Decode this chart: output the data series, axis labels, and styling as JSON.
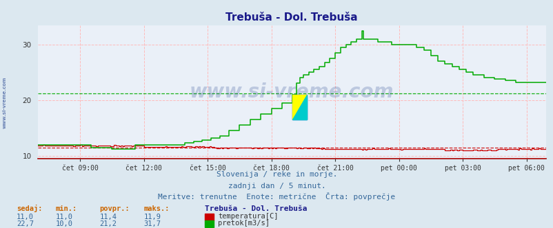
{
  "title": "Trebuša - Dol. Trebuša",
  "bg_color": "#dce8f0",
  "plot_bg": "#eaf0f8",
  "x_labels": [
    "čet 09:00",
    "čet 12:00",
    "čet 15:00",
    "čet 18:00",
    "čet 21:00",
    "pet 00:00",
    "pet 03:00",
    "pet 06:00"
  ],
  "ylim": [
    9.5,
    33.5
  ],
  "yticks": [
    10,
    20,
    30
  ],
  "temp_avg": 11.4,
  "flow_avg": 21.2,
  "subtitle1": "Slovenija / reke in morje.",
  "subtitle2": "zadnji dan / 5 minut.",
  "subtitle3": "Meritve: trenutne  Enote: metrične  Črta: povprečje",
  "legend_title": "Trebuša - Dol. Trebuša",
  "stats_headers": [
    "sedaj:",
    "min.:",
    "povpr.:",
    "maks.:"
  ],
  "stats_temp": [
    "11,0",
    "11,0",
    "11,4",
    "11,9"
  ],
  "stats_flow": [
    "22,7",
    "10,0",
    "21,2",
    "31,7"
  ],
  "temp_color": "#cc0000",
  "flow_color": "#00aa00",
  "watermark": "www.si-vreme.com",
  "watermark_color": "#1a3a8a",
  "label_color": "#336699",
  "header_color": "#cc6600"
}
